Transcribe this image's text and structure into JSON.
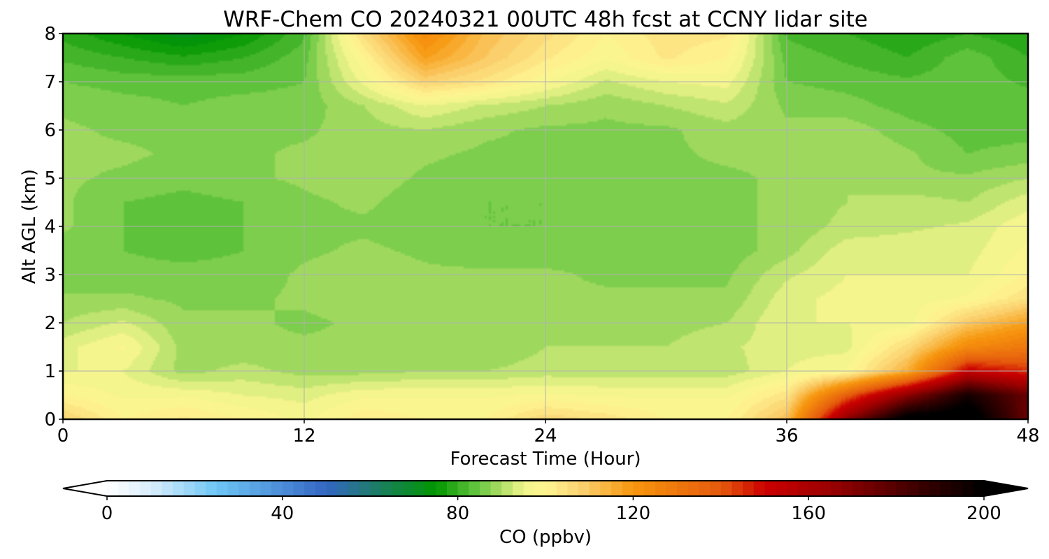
{
  "chart_data": {
    "type": "heatmap",
    "title": "WRF-Chem CO  20240321 00UTC 48h fcst at CCNY lidar site",
    "xlabel": "Forecast Time (Hour)",
    "ylabel": "Alt AGL (km)",
    "xlim": [
      0,
      48
    ],
    "ylim": [
      0,
      8
    ],
    "x_ticks": [
      "0",
      "12",
      "24",
      "36",
      "48"
    ],
    "y_ticks": [
      "0",
      "1",
      "2",
      "3",
      "4",
      "5",
      "6",
      "7",
      "8"
    ],
    "grid": true,
    "x_hours": [
      0,
      3,
      6,
      9,
      12,
      15,
      18,
      21,
      24,
      27,
      30,
      33,
      36,
      39,
      42,
      45,
      48
    ],
    "z_km": [
      0,
      0.5,
      1,
      1.5,
      2,
      2.5,
      3,
      3.5,
      4,
      4.5,
      5,
      5.5,
      6,
      6.5,
      7,
      7.5,
      8
    ],
    "values": [
      [
        108,
        100,
        103,
        100,
        97,
        102,
        100,
        100,
        107,
        104,
        100,
        100,
        112,
        168,
        205,
        208,
        175
      ],
      [
        100,
        97,
        97,
        95,
        94,
        97,
        97,
        97,
        98,
        97,
        97,
        97,
        104,
        138,
        168,
        195,
        175
      ],
      [
        95,
        95,
        89,
        91,
        89,
        89,
        90,
        90,
        91,
        91,
        91,
        91,
        95,
        98,
        115,
        152,
        145
      ],
      [
        94,
        98,
        89,
        88,
        88,
        88,
        89,
        88,
        90,
        90,
        90,
        92,
        94,
        94,
        106,
        124,
        130
      ],
      [
        90,
        93,
        88,
        88,
        87,
        88,
        89,
        88,
        88,
        88,
        89,
        90,
        95,
        95,
        96,
        110,
        118
      ],
      [
        88,
        88,
        87,
        87,
        88,
        89,
        89,
        88,
        88,
        88,
        88,
        88,
        94,
        96,
        96,
        98,
        105
      ],
      [
        86,
        86,
        86,
        86,
        88,
        89,
        88,
        88,
        88,
        87,
        87,
        87,
        92,
        95,
        95,
        95,
        100
      ],
      [
        86,
        85,
        84,
        85,
        87,
        88,
        87,
        86,
        86,
        87,
        87,
        86,
        89,
        94,
        94,
        94,
        98
      ],
      [
        88,
        85,
        84,
        85,
        87,
        87,
        86,
        85,
        85,
        87,
        87,
        87,
        88,
        91,
        92,
        93,
        97
      ],
      [
        88,
        85,
        84,
        85,
        87,
        88,
        86,
        85,
        85,
        87,
        87,
        87,
        88,
        90,
        91,
        90,
        94
      ],
      [
        88,
        87,
        86,
        87,
        88,
        89,
        87,
        86,
        86,
        87,
        87,
        87,
        88,
        90,
        88,
        88,
        90
      ],
      [
        88,
        88,
        87,
        87,
        88,
        89,
        88,
        87,
        87,
        87,
        87,
        88,
        88,
        90,
        88,
        85,
        86
      ],
      [
        88,
        87,
        87,
        87,
        87,
        89,
        90,
        88,
        87,
        87,
        87,
        89,
        88,
        89,
        86,
        84,
        84
      ],
      [
        87,
        86,
        85,
        86,
        86,
        90,
        95,
        92,
        90,
        88,
        90,
        92,
        87,
        86,
        84,
        83,
        84
      ],
      [
        85,
        84,
        84,
        84,
        85,
        96,
        108,
        104,
        98,
        92,
        95,
        96,
        85,
        84,
        83,
        84,
        82
      ],
      [
        82,
        80,
        78,
        80,
        84,
        100,
        118,
        110,
        103,
        98,
        103,
        100,
        84,
        82,
        80,
        84,
        80
      ],
      [
        79,
        75,
        71,
        75,
        82,
        106,
        124,
        112,
        106,
        100,
        104,
        103,
        82,
        80,
        78,
        80,
        78
      ]
    ],
    "colorbar": {
      "label": "CO  (ppbv)",
      "ticks": [
        "0",
        "40",
        "80",
        "120",
        "160",
        "200"
      ],
      "range": [
        0,
        200
      ],
      "extend": "both",
      "stops": [
        {
          "v": 0,
          "c": "#ffffff"
        },
        {
          "v": 10,
          "c": "#d9edfb"
        },
        {
          "v": 25,
          "c": "#6ec6f5"
        },
        {
          "v": 50,
          "c": "#3466c4"
        },
        {
          "v": 60,
          "c": "#1f7a70"
        },
        {
          "v": 75,
          "c": "#009600"
        },
        {
          "v": 85,
          "c": "#6cc843"
        },
        {
          "v": 95,
          "c": "#f0f58a"
        },
        {
          "v": 100,
          "c": "#fff592"
        },
        {
          "v": 108,
          "c": "#fbd371"
        },
        {
          "v": 120,
          "c": "#f7960d"
        },
        {
          "v": 140,
          "c": "#e55a0d"
        },
        {
          "v": 150,
          "c": "#cc0000"
        },
        {
          "v": 165,
          "c": "#9b0000"
        },
        {
          "v": 185,
          "c": "#3c0000"
        },
        {
          "v": 200,
          "c": "#000000"
        }
      ]
    }
  }
}
